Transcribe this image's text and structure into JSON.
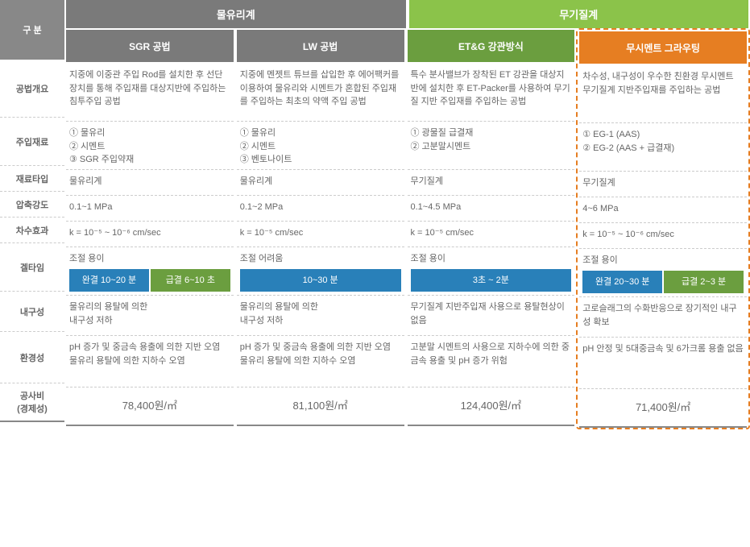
{
  "labels": {
    "section": "구 분",
    "overview": "공법개요",
    "material": "주입재료",
    "type": "재료타입",
    "strength": "압축강도",
    "water": "차수효과",
    "gel": "겔타임",
    "durability": "내구성",
    "env": "환경성",
    "cost": "공사비\n(경제성)"
  },
  "groups": {
    "g1": "물유리계",
    "g2": "무기질계"
  },
  "columns": [
    {
      "header": "SGR 공법",
      "headerClass": "ch-gray",
      "overview": "지중에 이중관 주입 Rod를 설치한 후 선단장치를 통해 주입재를 대상지반에 주입하는 침투주입 공법",
      "material": "① 물유리\n② 시멘트\n③ SGR 주입약재",
      "type": "물유리계",
      "strength": "0.1~1 MPa",
      "water": "k = 10⁻⁵ ~ 10⁻⁶ cm/sec",
      "gelText": "조절 용이",
      "gelBadges": [
        {
          "text": "완결 10~20 분",
          "cls": "badge-blue"
        },
        {
          "text": "급결 6~10 초",
          "cls": "badge-green"
        }
      ],
      "durability": "물유리의 용탈에 의한\n내구성 저하",
      "env": "pH 증가 및 중금속 용출에 의한 지반 오염\n물유리 용탈에 의한 지하수 오염",
      "cost": "78,400원/㎡"
    },
    {
      "header": "LW 공법",
      "headerClass": "ch-gray",
      "overview": "지중에 멘젯트 튜브를 삽입한 후 에어팩커를 이용하여 물유리와 시멘트가 혼합된 주입재를 주입하는 최초의 약액 주입 공법",
      "material": "① 물유리\n② 시멘트\n③ 벤토나이트",
      "type": "물유리계",
      "strength": "0.1~2 MPa",
      "water": "k = 10⁻⁵ cm/sec",
      "gelText": "조절 어려움",
      "gelBadges": [
        {
          "text": "10~30 분",
          "cls": "badge-blue"
        }
      ],
      "durability": "물유리의 용탈에 의한\n내구성 저하",
      "env": "pH 증가 및 중금속 용출에 의한 지반 오염\n물유리 용탈에 의한 지하수 오염",
      "cost": "81,100원/㎡"
    },
    {
      "header": "ET&G 강관방식",
      "headerClass": "ch-green",
      "overview": "특수 분사밸브가 장착된 ET 강관을 대상지반에 설치한 후 ET-Packer를 사용하여 무기질 지반 주입재를 주입하는 공법",
      "material": "① 광물질 급결재\n② 고분말시멘트",
      "type": "무기질계",
      "strength": "0.1~4.5 MPa",
      "water": "k = 10⁻⁵ cm/sec",
      "gelText": "조절 용이",
      "gelBadges": [
        {
          "text": "3초 ~ 2분",
          "cls": "badge-blue"
        }
      ],
      "durability": "무기질계 지반주입재 사용으로 용탈현상이 없음",
      "env": "고분말 시멘트의 사용으로 지하수에 의한 중금속 용출 및 pH 증가 위험",
      "cost": "124,400원/㎡"
    },
    {
      "header": "무시멘트 그라우팅",
      "headerClass": "ch-orange",
      "highlighted": true,
      "overview": "차수성, 내구성이 우수한 친환경 무시멘트 무기질계 지반주입재를 주입하는 공법",
      "material": "① EG-1 (AAS)\n② EG-2 (AAS + 급결재)",
      "type": "무기질계",
      "strength": "4~6 MPa",
      "water": "k = 10⁻⁵ ~ 10⁻⁶ cm/sec",
      "gelText": "조절 용이",
      "gelBadges": [
        {
          "text": "완결 20~30 분",
          "cls": "badge-blue"
        },
        {
          "text": "급결 2~3 분",
          "cls": "badge-green"
        }
      ],
      "durability": "고로슬래그의 수화반응으로 장기적인 내구성 확보",
      "env": "pH 안정 및 5대중금속 및 6가크롬 용출 없음",
      "cost": "71,400원/㎡"
    }
  ]
}
